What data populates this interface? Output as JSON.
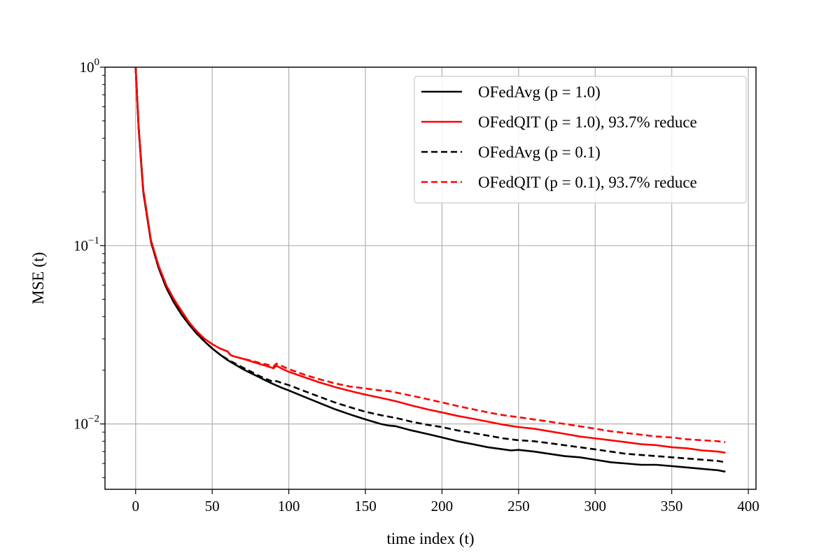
{
  "chart_data": {
    "type": "line",
    "title": "",
    "xlabel": "time index (t)",
    "ylabel": "MSE (t)",
    "xlim": [
      -20,
      405
    ],
    "ylim": [
      0.0043,
      1.0
    ],
    "yscale": "log",
    "grid": true,
    "legend_position": "top-right",
    "xticks": [
      {
        "value": 0,
        "label": "0"
      },
      {
        "value": 50,
        "label": "50"
      },
      {
        "value": 100,
        "label": "100"
      },
      {
        "value": 150,
        "label": "150"
      },
      {
        "value": 200,
        "label": "200"
      },
      {
        "value": 250,
        "label": "250"
      },
      {
        "value": 300,
        "label": "300"
      },
      {
        "value": 350,
        "label": "350"
      },
      {
        "value": 400,
        "label": "400"
      }
    ],
    "yticks": [
      {
        "value": 1.0,
        "base": "10",
        "exp": "0"
      },
      {
        "value": 0.1,
        "base": "10",
        "exp": "−1"
      },
      {
        "value": 0.01,
        "base": "10",
        "exp": "−2"
      }
    ],
    "series": [
      {
        "name": "OFedAvg (p = 1.0)",
        "color": "#000000",
        "dash": "solid",
        "x": [
          0,
          2,
          5,
          10,
          15,
          20,
          25,
          30,
          35,
          40,
          45,
          50,
          55,
          60,
          65,
          70,
          75,
          80,
          85,
          90,
          95,
          100,
          110,
          120,
          130,
          140,
          150,
          160,
          165,
          170,
          180,
          190,
          200,
          210,
          220,
          230,
          240,
          245,
          250,
          260,
          270,
          280,
          290,
          300,
          310,
          320,
          330,
          335,
          340,
          350,
          360,
          370,
          380,
          385
        ],
        "y": [
          1.0,
          0.45,
          0.2,
          0.105,
          0.075,
          0.058,
          0.048,
          0.041,
          0.036,
          0.032,
          0.029,
          0.0265,
          0.0245,
          0.0228,
          0.0215,
          0.0203,
          0.0193,
          0.0184,
          0.0175,
          0.0167,
          0.016,
          0.0154,
          0.0142,
          0.0131,
          0.0121,
          0.0113,
          0.0106,
          0.01,
          0.0098,
          0.0097,
          0.0092,
          0.0088,
          0.0084,
          0.008,
          0.0077,
          0.0074,
          0.0072,
          0.0071,
          0.00715,
          0.007,
          0.0068,
          0.0066,
          0.0065,
          0.0063,
          0.0061,
          0.006,
          0.0059,
          0.0059,
          0.0059,
          0.0058,
          0.0057,
          0.0056,
          0.0055,
          0.0054
        ]
      },
      {
        "name": "OFedQIT (p = 1.0), 93.7% reduce",
        "color": "#ff0000",
        "dash": "solid",
        "x": [
          0,
          2,
          5,
          10,
          15,
          20,
          25,
          30,
          35,
          40,
          45,
          50,
          55,
          60,
          62,
          65,
          70,
          75,
          80,
          85,
          90,
          92,
          95,
          100,
          110,
          120,
          130,
          140,
          150,
          160,
          165,
          170,
          180,
          190,
          200,
          210,
          220,
          230,
          240,
          250,
          260,
          270,
          280,
          290,
          300,
          310,
          320,
          330,
          340,
          350,
          360,
          370,
          380,
          385
        ],
        "y": [
          1.0,
          0.46,
          0.205,
          0.107,
          0.077,
          0.06,
          0.05,
          0.043,
          0.037,
          0.033,
          0.03,
          0.028,
          0.0265,
          0.0255,
          0.0243,
          0.0238,
          0.0232,
          0.0225,
          0.0218,
          0.0212,
          0.0205,
          0.0212,
          0.0205,
          0.0196,
          0.0183,
          0.0171,
          0.0161,
          0.0153,
          0.0146,
          0.014,
          0.0137,
          0.0134,
          0.0127,
          0.0121,
          0.0116,
          0.0111,
          0.0107,
          0.0103,
          0.0099,
          0.0096,
          0.0094,
          0.0091,
          0.0088,
          0.0085,
          0.0083,
          0.0081,
          0.0079,
          0.0077,
          0.0076,
          0.0074,
          0.0073,
          0.0071,
          0.007,
          0.0069
        ]
      },
      {
        "name": "OFedAvg (p = 0.1)",
        "color": "#000000",
        "dash": "dashed",
        "x": [
          0,
          2,
          5,
          10,
          15,
          20,
          25,
          30,
          35,
          40,
          45,
          50,
          55,
          60,
          65,
          70,
          75,
          80,
          85,
          90,
          92,
          95,
          100,
          110,
          120,
          130,
          140,
          150,
          160,
          170,
          180,
          190,
          200,
          210,
          220,
          230,
          240,
          245,
          250,
          260,
          270,
          280,
          290,
          300,
          310,
          320,
          330,
          340,
          350,
          360,
          370,
          380,
          385
        ],
        "y": [
          1.0,
          0.45,
          0.2,
          0.105,
          0.075,
          0.058,
          0.048,
          0.041,
          0.036,
          0.032,
          0.029,
          0.0265,
          0.0245,
          0.023,
          0.0218,
          0.0207,
          0.0197,
          0.0187,
          0.0179,
          0.0172,
          0.0174,
          0.017,
          0.0165,
          0.0153,
          0.0142,
          0.0132,
          0.0124,
          0.0117,
          0.0112,
          0.0108,
          0.0103,
          0.0099,
          0.0096,
          0.0092,
          0.0089,
          0.0086,
          0.0083,
          0.0082,
          0.0081,
          0.008,
          0.0078,
          0.0076,
          0.0074,
          0.0072,
          0.007,
          0.0068,
          0.0067,
          0.0066,
          0.0065,
          0.0064,
          0.0063,
          0.0062,
          0.0061
        ]
      },
      {
        "name": "OFedQIT (p = 0.1), 93.7% reduce",
        "color": "#ff0000",
        "dash": "dashed",
        "x": [
          0,
          2,
          5,
          10,
          15,
          20,
          25,
          30,
          35,
          40,
          45,
          50,
          55,
          60,
          62,
          65,
          70,
          75,
          80,
          85,
          90,
          92,
          95,
          100,
          110,
          120,
          130,
          140,
          150,
          160,
          165,
          170,
          180,
          190,
          200,
          210,
          220,
          230,
          240,
          250,
          260,
          270,
          280,
          290,
          300,
          310,
          320,
          330,
          340,
          350,
          360,
          370,
          380,
          385
        ],
        "y": [
          1.0,
          0.46,
          0.205,
          0.107,
          0.077,
          0.06,
          0.05,
          0.043,
          0.037,
          0.033,
          0.03,
          0.028,
          0.0265,
          0.0255,
          0.0243,
          0.0238,
          0.0232,
          0.0227,
          0.0221,
          0.0216,
          0.021,
          0.0218,
          0.0212,
          0.0203,
          0.0189,
          0.0178,
          0.0169,
          0.0162,
          0.0158,
          0.0154,
          0.0153,
          0.015,
          0.0144,
          0.0138,
          0.0132,
          0.0126,
          0.0121,
          0.0116,
          0.0112,
          0.0109,
          0.0106,
          0.0103,
          0.01,
          0.0097,
          0.0094,
          0.0091,
          0.0089,
          0.0087,
          0.0085,
          0.0084,
          0.0082,
          0.0081,
          0.008,
          0.0079
        ]
      }
    ]
  }
}
